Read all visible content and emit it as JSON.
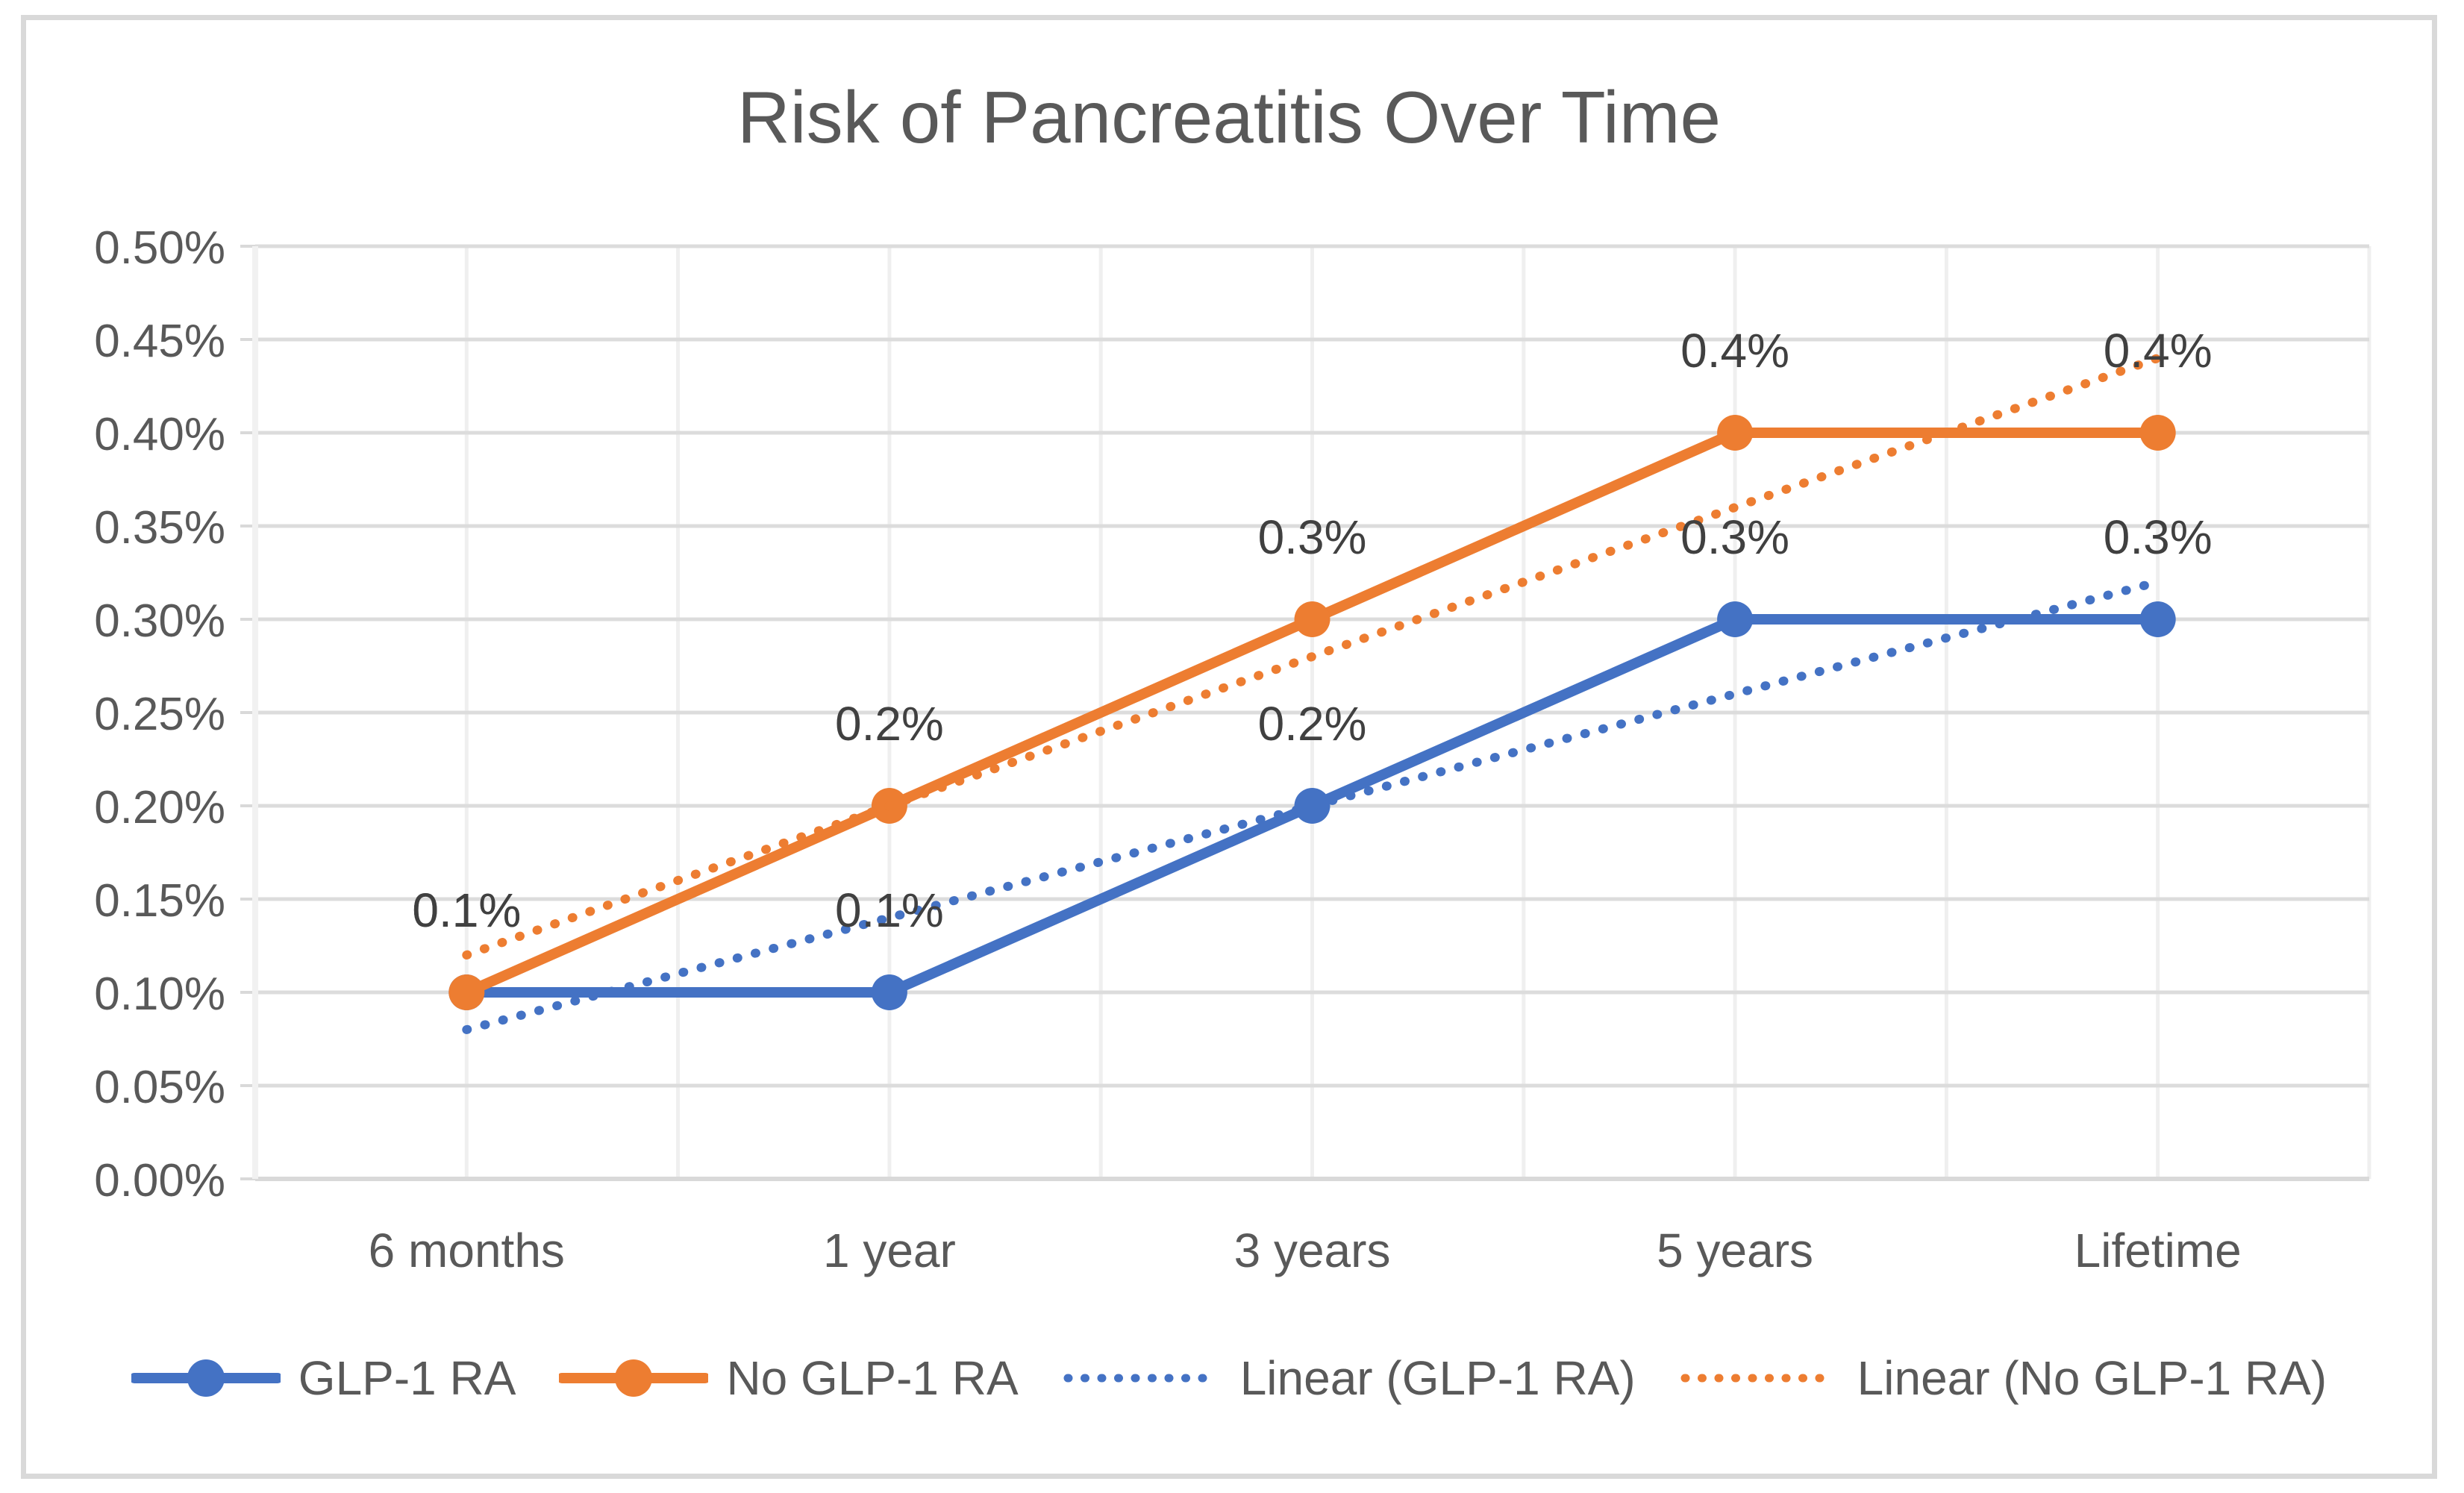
{
  "chart_data": {
    "type": "line",
    "title": "Risk of Pancreatitis Over Time",
    "categories": [
      "6 months",
      "1 year",
      "3 years",
      "5 years",
      "Lifetime"
    ],
    "series": [
      {
        "name": "GLP-1 RA",
        "color": "#4472C4",
        "style": "solid-marker",
        "values": [
          0.1,
          0.1,
          0.2,
          0.3,
          0.3
        ],
        "point_labels": [
          "0.1%",
          "0.1%",
          "0.2%",
          "0.3%",
          "0.3%"
        ]
      },
      {
        "name": "No GLP-1 RA",
        "color": "#ED7D31",
        "style": "solid-marker",
        "values": [
          0.1,
          0.2,
          0.3,
          0.4,
          0.4
        ],
        "point_labels": [
          "0.1%",
          "0.2%",
          "0.3%",
          "0.4%",
          "0.4%"
        ]
      }
    ],
    "trendlines": [
      {
        "name": "Linear (GLP-1 RA)",
        "color": "#4472C4",
        "style": "dotted",
        "start": 0.08,
        "end": 0.32
      },
      {
        "name": "Linear (No GLP-1 RA)",
        "color": "#ED7D31",
        "style": "dotted",
        "start": 0.12,
        "end": 0.44
      }
    ],
    "y_axis": {
      "unit": "%",
      "min": 0.0,
      "max": 0.5,
      "ticks": [
        "0.50%",
        "0.45%",
        "0.40%",
        "0.35%",
        "0.30%",
        "0.25%",
        "0.20%",
        "0.15%",
        "0.10%",
        "0.05%",
        "0.00%"
      ]
    },
    "legend": {
      "position": "bottom",
      "entries": [
        "GLP-1 RA",
        "No GLP-1 RA",
        "Linear (GLP-1 RA)",
        "Linear (No GLP-1 RA)"
      ]
    },
    "grid": {
      "horizontal": true,
      "vertical": true
    },
    "colors": {
      "accent_blue": "#4472C4",
      "accent_orange": "#ED7D31",
      "title_text": "#595959",
      "axis_text": "#595959",
      "data_label_text": "#404040",
      "gridline": "#DCDCDC",
      "gridline_vertical": "#EFEFEF",
      "axis_line": "#D9D9D9",
      "frame_border": "#D9D9D9"
    }
  }
}
